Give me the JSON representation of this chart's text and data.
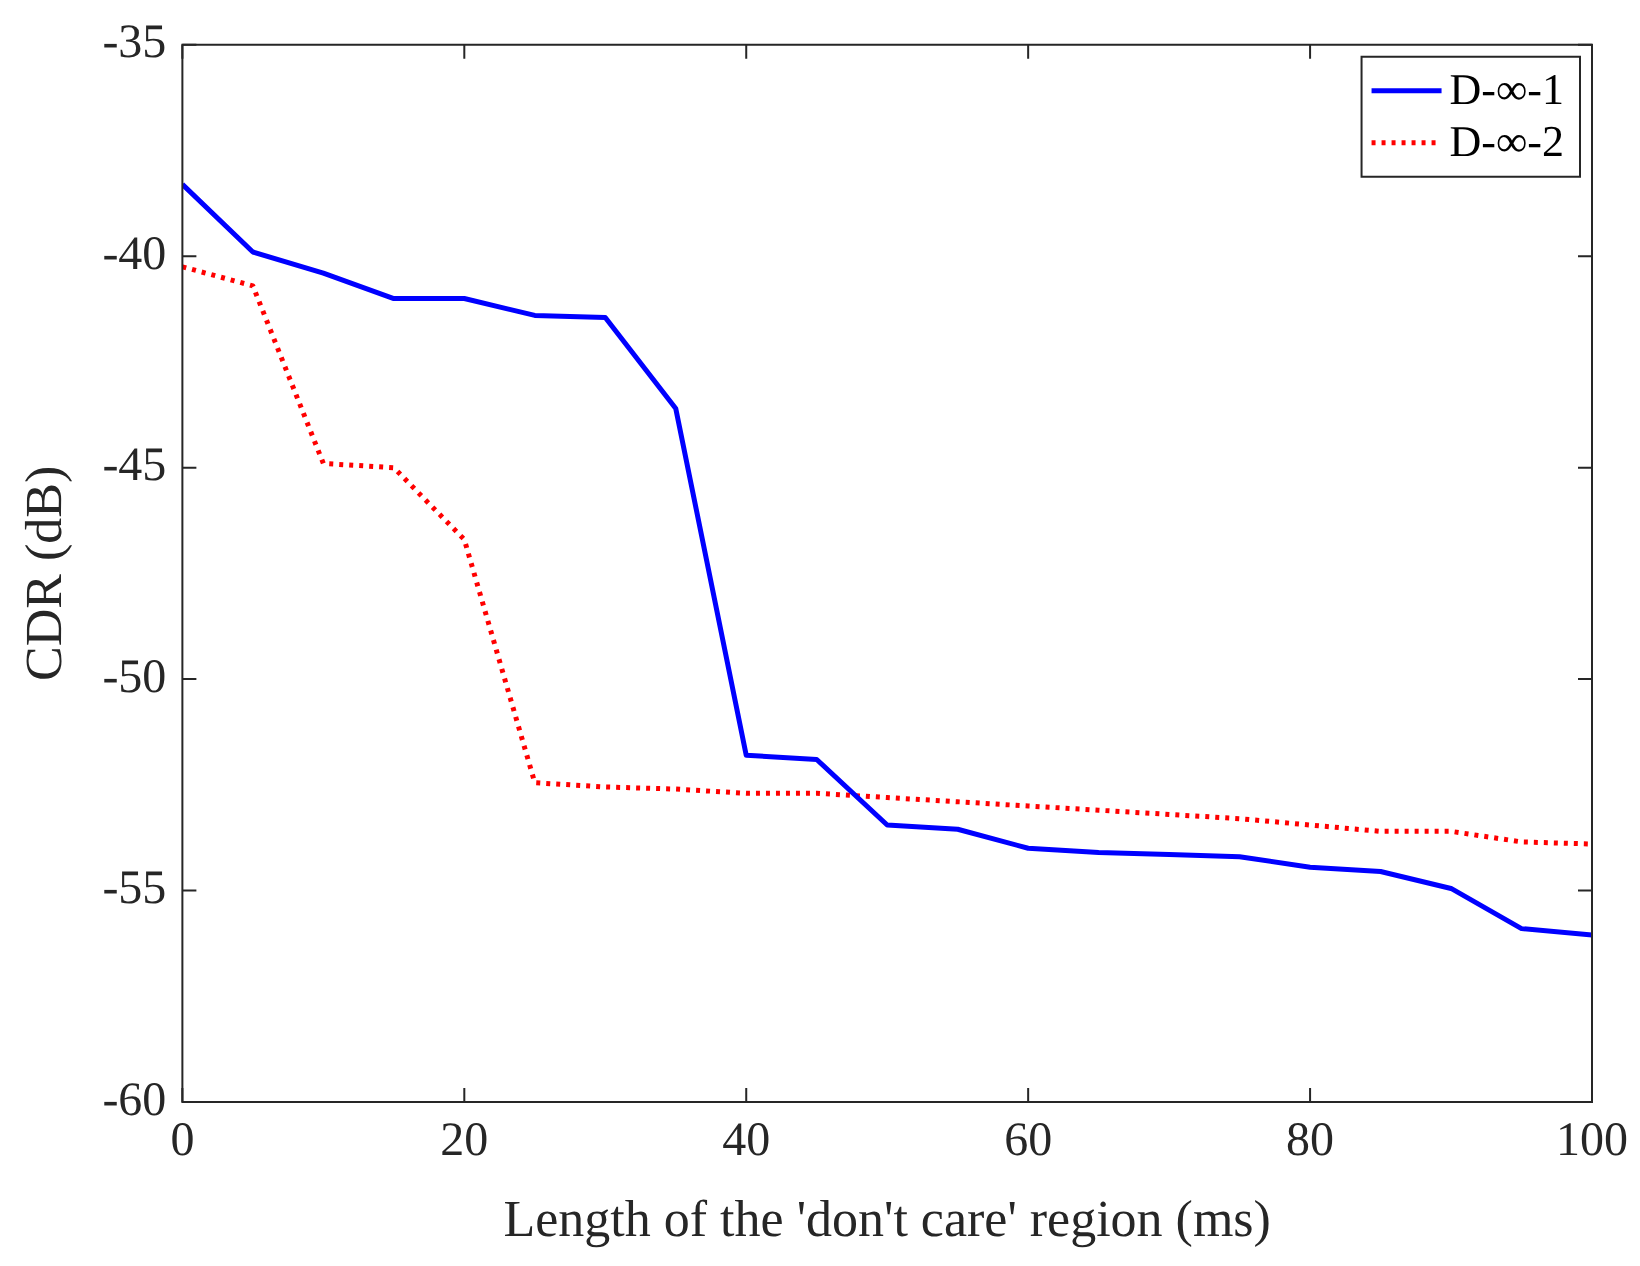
{
  "chart_data": {
    "type": "line",
    "xlabel": "Length of the 'don't care' region (ms)",
    "ylabel": "CDR (dB)",
    "x": [
      0,
      5,
      10,
      15,
      20,
      25,
      30,
      35,
      40,
      45,
      50,
      55,
      60,
      65,
      70,
      75,
      80,
      85,
      90,
      95,
      100
    ],
    "xlim": [
      0,
      100
    ],
    "xticks": [
      0,
      20,
      40,
      60,
      80,
      100
    ],
    "ylim": [
      -60,
      -35
    ],
    "yticks": [
      -60,
      -55,
      -50,
      -45,
      -40,
      -35
    ],
    "grid": false,
    "legend": "top right",
    "marker": "none",
    "series": [
      {
        "name": "D-∞-1",
        "color": "#0000ff",
        "line_style": "solid",
        "values": [
          -38.3,
          -39.9,
          -40.4,
          -41.0,
          -41.0,
          -41.4,
          -41.45,
          -43.6,
          -51.8,
          -51.9,
          -53.45,
          -53.55,
          -54.0,
          -54.1,
          -54.15,
          -54.2,
          -54.45,
          -54.55,
          -54.95,
          -55.9,
          -56.05
        ]
      },
      {
        "name": "D-∞-2",
        "color": "#ff0000",
        "line_style": "dotted",
        "values": [
          -40.25,
          -40.7,
          -44.9,
          -45.0,
          -46.7,
          -52.45,
          -52.55,
          -52.6,
          -52.7,
          -52.7,
          -52.8,
          -52.9,
          -53.0,
          -53.1,
          -53.2,
          -53.3,
          -53.45,
          -53.6,
          -53.6,
          -53.85,
          -53.9
        ]
      }
    ]
  }
}
